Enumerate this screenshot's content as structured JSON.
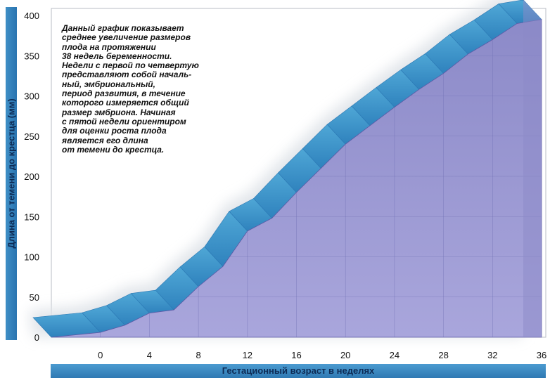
{
  "chart_data": {
    "type": "area",
    "title": "",
    "xlabel": "Гестационный возраст в неделях",
    "ylabel": "Длина от темени до крестца (мм)",
    "xlim": [
      -4,
      36
    ],
    "ylim": [
      0,
      400
    ],
    "x_ticks": [
      0,
      4,
      8,
      12,
      16,
      20,
      24,
      28,
      32,
      36
    ],
    "y_ticks": [
      0,
      50,
      100,
      150,
      200,
      250,
      300,
      350,
      400
    ],
    "series": [
      {
        "x": [
          -4,
          0,
          2,
          4,
          6,
          8,
          10,
          12,
          14,
          16,
          18,
          20,
          22,
          24,
          26,
          28,
          30,
          32,
          34,
          36
        ],
        "values": [
          0,
          6,
          15,
          30,
          34,
          63,
          88,
          132,
          148,
          180,
          210,
          240,
          263,
          286,
          308,
          328,
          352,
          370,
          390,
          395
        ]
      }
    ],
    "annotation": "Данный график показывает\nсреднее увеличение размеров\nплода на протяжении\n38 недель беременности.\nНедели с первой по четвертую\nпредставляют собой началь-\nный, эмбриональный,\nпериод развития, в течение\nкоторого измеряется общий\nразмер эмбриона. Начиная\nс пятой недели ориентиром\nдля оценки роста плода\nявляется его длина\nот темени до крестца.",
    "colors": {
      "area_fill": "#a9a6dc",
      "area_fill_dark": "#8c8ac8",
      "ribbon": "#4fa7d6",
      "ribbon_dark": "#2f82bd",
      "label_bar": "#3a86c2",
      "shadow": "#dfe3e8",
      "grid": "#6f6fb3"
    },
    "grid": true
  }
}
